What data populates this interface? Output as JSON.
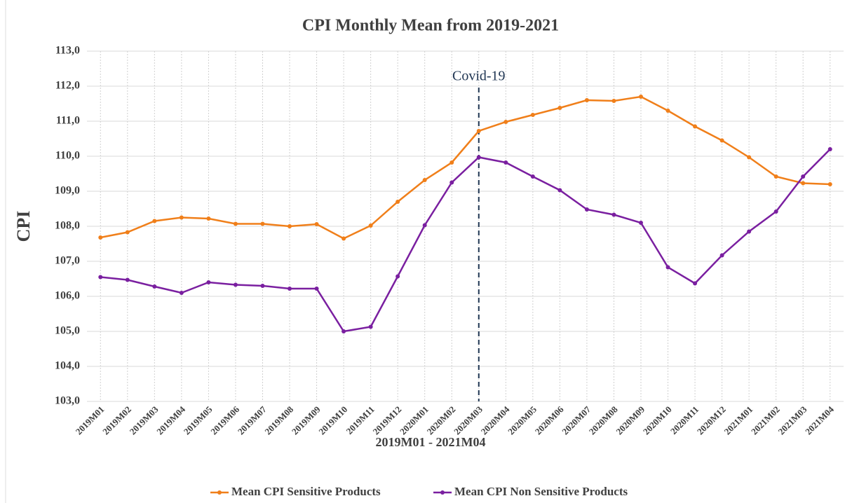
{
  "chart_data": {
    "type": "line",
    "title": "CPI Monthly Mean from 2019-2021",
    "x_label": "2019M01 - 2021M04",
    "y_label": "CPI",
    "categories": [
      "2019M01",
      "2019M02",
      "2019M03",
      "2019M04",
      "2019M05",
      "2019M06",
      "2019M07",
      "2019M08",
      "2019M09",
      "2019M10",
      "2019M11",
      "2019M12",
      "2020M01",
      "2020M02",
      "2020M03",
      "2020M04",
      "2020M05",
      "2020M06",
      "2020M07",
      "2020M08",
      "2020M09",
      "2020M10",
      "2020M11",
      "2020M12",
      "2021M01",
      "2021M02",
      "2021M03",
      "2021M04"
    ],
    "series": [
      {
        "name": "Mean CPI Sensitive Products",
        "color": "#f07f1a",
        "values": [
          107.68,
          107.83,
          108.15,
          108.25,
          108.22,
          108.07,
          108.07,
          108.0,
          108.06,
          107.65,
          108.02,
          108.7,
          109.32,
          109.82,
          110.72,
          110.98,
          111.18,
          111.38,
          111.6,
          111.58,
          111.7,
          111.3,
          110.85,
          110.45,
          109.97,
          109.42,
          109.23,
          109.2
        ]
      },
      {
        "name": "Mean CPI Non Sensitive Products",
        "color": "#7a1fa0",
        "values": [
          106.55,
          106.47,
          106.28,
          106.1,
          106.4,
          106.33,
          106.3,
          106.22,
          106.22,
          105.0,
          105.13,
          106.57,
          108.03,
          109.25,
          109.97,
          109.82,
          109.42,
          109.03,
          108.48,
          108.33,
          108.1,
          106.83,
          106.37,
          107.17,
          107.85,
          108.42,
          109.42,
          110.2
        ]
      }
    ],
    "ylim": [
      103,
      113
    ],
    "yticks": [
      {
        "value": 103,
        "label": "103,0"
      },
      {
        "value": 104,
        "label": "104,0"
      },
      {
        "value": 105,
        "label": "105,0"
      },
      {
        "value": 106,
        "label": "106,0"
      },
      {
        "value": 107,
        "label": "107,0"
      },
      {
        "value": 108,
        "label": "108,0"
      },
      {
        "value": 109,
        "label": "109,0"
      },
      {
        "value": 110,
        "label": "110,0"
      },
      {
        "value": 111,
        "label": "111,0"
      },
      {
        "value": 112,
        "label": "112,0"
      },
      {
        "value": 113,
        "label": "113,0"
      }
    ],
    "grid": true,
    "legend": "bottom",
    "annotation": {
      "text": "Covid-19",
      "x": "2020M03"
    }
  }
}
